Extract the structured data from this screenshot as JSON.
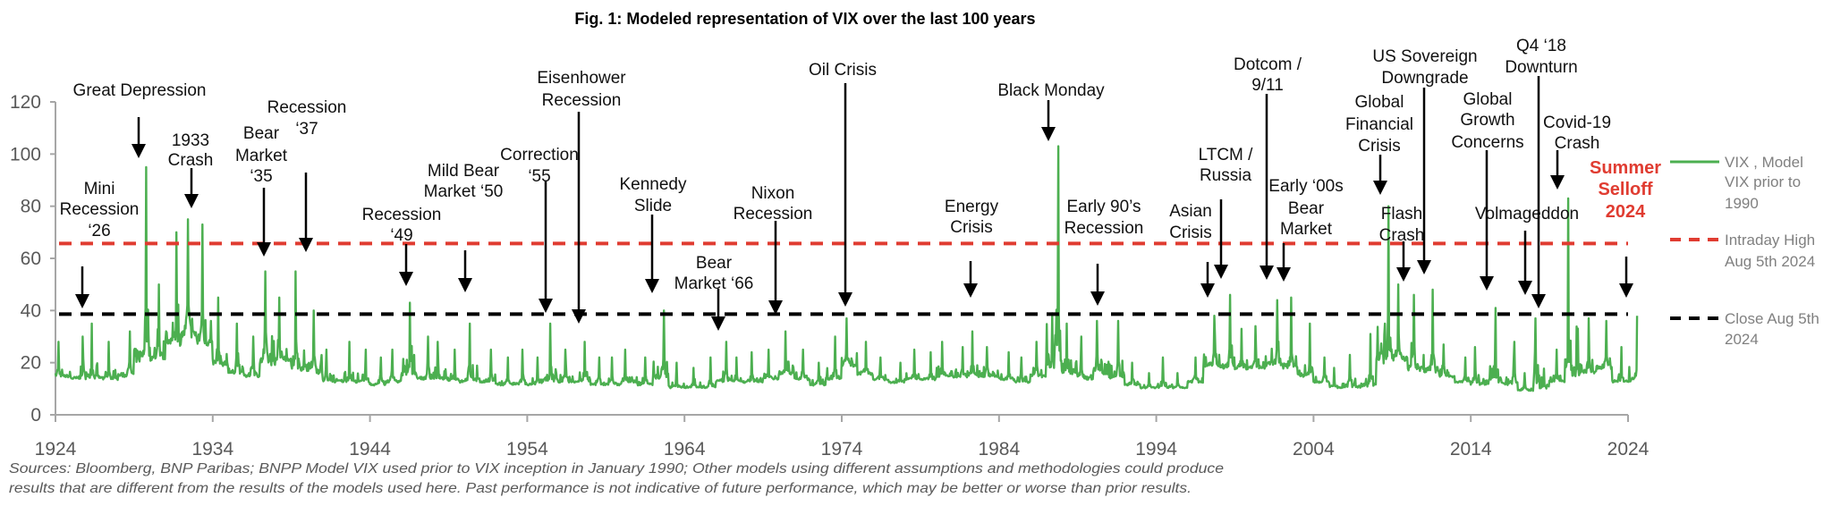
{
  "chart_data": {
    "type": "line",
    "title": "Fig. 1: Modeled representation of VIX over the last 100 years",
    "xlim": [
      1924,
      2024
    ],
    "ylim": [
      0,
      120
    ],
    "x_ticks": [
      "1924",
      "1934",
      "1944",
      "1954",
      "1964",
      "1974",
      "1984",
      "1994",
      "2004",
      "2014",
      "2024"
    ],
    "y_ticks": [
      "0",
      "20",
      "40",
      "60",
      "80",
      "100",
      "120"
    ],
    "grid": false,
    "legend_placement": "right",
    "colors": {
      "vix": "#4caf50",
      "intraday_high": "#e03c31",
      "close": "#000000"
    },
    "series": [
      {
        "name": "VIX , Model VIX prior to 1990",
        "x": [
          1924,
          1925,
          1926,
          1927,
          1928,
          1929,
          1930,
          1931,
          1932,
          1933,
          1934,
          1935,
          1936,
          1937,
          1938,
          1939,
          1940,
          1941,
          1942,
          1943,
          1944,
          1945,
          1946,
          1947,
          1948,
          1949,
          1950,
          1951,
          1952,
          1953,
          1954,
          1955,
          1956,
          1957,
          1958,
          1959,
          1960,
          1961,
          1962,
          1963,
          1964,
          1965,
          1966,
          1967,
          1968,
          1969,
          1970,
          1971,
          1972,
          1973,
          1974,
          1975,
          1976,
          1977,
          1978,
          1979,
          1980,
          1981,
          1982,
          1983,
          1984,
          1985,
          1986,
          1987,
          1988,
          1989,
          1990,
          1991,
          1992,
          1993,
          1994,
          1995,
          1996,
          1997,
          1998,
          1999,
          2000,
          2001,
          2002,
          2003,
          2004,
          2005,
          2006,
          2007,
          2008,
          2009,
          2010,
          2011,
          2012,
          2013,
          2014,
          2015,
          2016,
          2017,
          2018,
          2019,
          2020,
          2021,
          2022,
          2023,
          2024
        ],
        "y_low": [
          14,
          13,
          13,
          13,
          14,
          18,
          20,
          25,
          28,
          25,
          18,
          15,
          14,
          18,
          20,
          16,
          15,
          12,
          12,
          12,
          11,
          12,
          14,
          13,
          13,
          12,
          12,
          12,
          11,
          11,
          11,
          12,
          12,
          12,
          11,
          11,
          12,
          11,
          13,
          10,
          10,
          10,
          12,
          12,
          12,
          13,
          15,
          13,
          11,
          13,
          18,
          15,
          13,
          12,
          13,
          13,
          14,
          14,
          14,
          14,
          13,
          12,
          14,
          15,
          15,
          13,
          15,
          13,
          11,
          10,
          10,
          10,
          12,
          18,
          17,
          17,
          17,
          18,
          17,
          14,
          12,
          10,
          10,
          10,
          18,
          20,
          16,
          15,
          14,
          12,
          11,
          11,
          11,
          9,
          9,
          12,
          12,
          15,
          17,
          12,
          12
        ],
        "y_high": [
          28,
          30,
          35,
          28,
          32,
          95,
          50,
          70,
          75,
          73,
          45,
          35,
          30,
          55,
          45,
          55,
          40,
          25,
          28,
          25,
          22,
          25,
          43,
          30,
          28,
          25,
          35,
          25,
          22,
          25,
          22,
          35,
          25,
          28,
          22,
          22,
          25,
          22,
          40,
          20,
          18,
          22,
          28,
          22,
          24,
          25,
          32,
          25,
          20,
          30,
          37,
          28,
          22,
          20,
          25,
          24,
          28,
          26,
          32,
          26,
          24,
          22,
          28,
          103,
          35,
          30,
          36,
          36,
          20,
          16,
          22,
          16,
          22,
          38,
          46,
          33,
          34,
          44,
          45,
          35,
          22,
          18,
          23,
          31,
          80,
          50,
          46,
          48,
          27,
          22,
          26,
          41,
          28,
          16,
          37,
          25,
          83,
          37,
          36,
          26,
          38
        ]
      },
      {
        "name": "Intraday High Aug 5th 2024",
        "value": 65.7,
        "style": "dashed"
      },
      {
        "name": "Close Aug 5th 2024",
        "value": 38.6,
        "style": "dashed"
      }
    ],
    "legend": [
      {
        "lines": [
          "VIX , Model",
          "VIX prior to",
          "1990"
        ]
      },
      {
        "lines": [
          "Intraday High",
          "Aug 5th 2024"
        ]
      },
      {
        "lines": [
          "Close Aug 5th",
          "2024"
        ]
      }
    ],
    "annotations": [
      {
        "lines": [
          "Great Depression"
        ]
      },
      {
        "lines": [
          "Mini",
          "Recession",
          "‘26"
        ]
      },
      {
        "lines": [
          "1933",
          "Crash"
        ]
      },
      {
        "lines": [
          "Bear",
          "Market",
          "‘35"
        ]
      },
      {
        "lines": [
          "Recession",
          "‘37"
        ]
      },
      {
        "lines": [
          "Recession",
          "‘49"
        ]
      },
      {
        "lines": [
          "Mild Bear",
          "Market ‘50"
        ]
      },
      {
        "lines": [
          "Correction",
          "‘55"
        ]
      },
      {
        "lines": [
          "Eisenhower",
          "Recession"
        ]
      },
      {
        "lines": [
          "Kennedy",
          "Slide"
        ]
      },
      {
        "lines": [
          "Bear",
          "Market ‘66"
        ]
      },
      {
        "lines": [
          "Nixon",
          "Recession"
        ]
      },
      {
        "lines": [
          "Oil Crisis"
        ]
      },
      {
        "lines": [
          "Energy",
          "Crisis"
        ]
      },
      {
        "lines": [
          "Black Monday"
        ]
      },
      {
        "lines": [
          "Early 90’s",
          "Recession"
        ]
      },
      {
        "lines": [
          "Asian",
          "Crisis"
        ]
      },
      {
        "lines": [
          "LTCM /",
          "Russia"
        ]
      },
      {
        "lines": [
          "Dotcom /",
          "9/11"
        ]
      },
      {
        "lines": [
          "Early ‘00s",
          "Bear",
          "Market"
        ]
      },
      {
        "lines": [
          "Global",
          "Financial",
          "Crisis"
        ]
      },
      {
        "lines": [
          "US Sovereign",
          "Downgrade"
        ]
      },
      {
        "lines": [
          "Flash",
          "Crash"
        ]
      },
      {
        "lines": [
          "Global",
          "Growth",
          "Concerns"
        ]
      },
      {
        "lines": [
          "Volmageddon"
        ]
      },
      {
        "lines": [
          "Q4 ‘18",
          "Downturn"
        ]
      },
      {
        "lines": [
          "Covid-19",
          "Crash"
        ]
      },
      {
        "lines": [
          "Summer",
          "Selloff",
          "2024"
        ],
        "highlight": true
      }
    ],
    "footnote": [
      "Sources: Bloomberg, BNP Paribas; BNPP Model VIX used prior to VIX inception in January 1990; Other models using different assumptions and methodologies could produce",
      "results that are different from the results of the models used here. Past performance is not indicative of future performance, which may be better or worse than prior results."
    ]
  }
}
